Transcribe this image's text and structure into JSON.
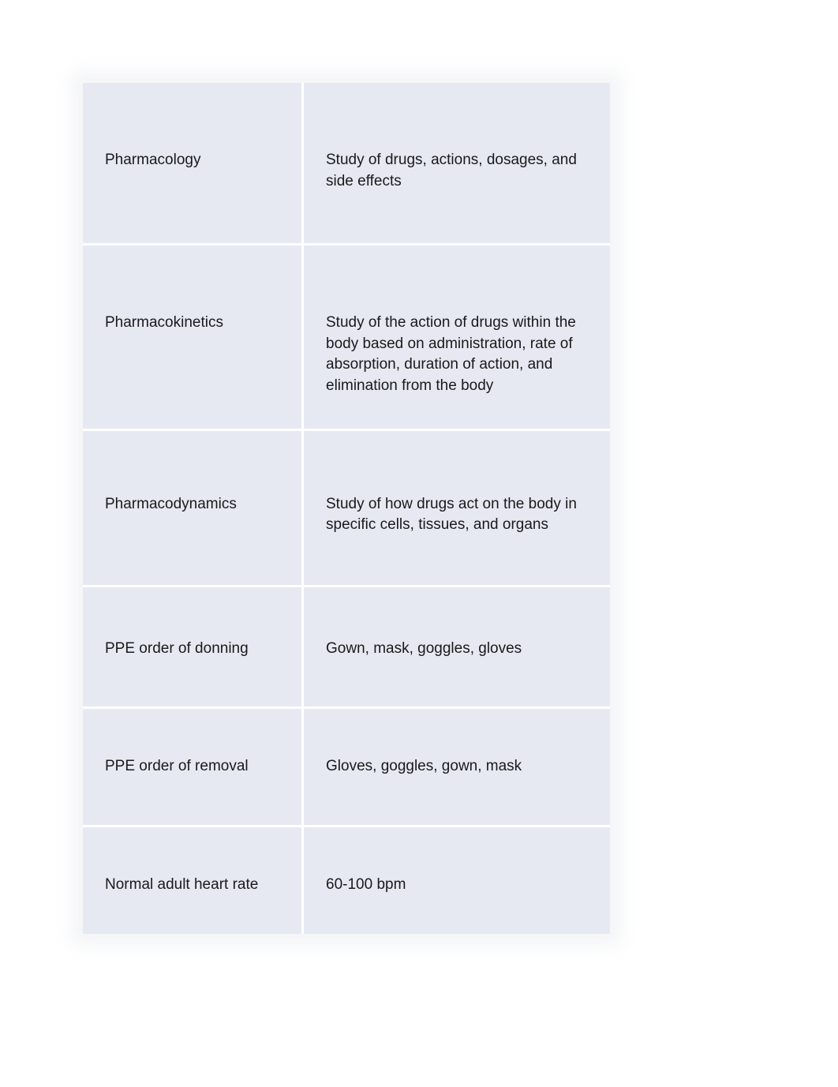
{
  "table": {
    "background_color": "#e6e9f2",
    "text_color": "#1a1a1a",
    "font_size": 19,
    "rows": [
      {
        "term": "Pharmacology",
        "definition": "Study of drugs, actions, dosages, and side effects"
      },
      {
        "term": "Pharmacokinetics",
        "definition": "Study of the action of drugs within the body based on administration, rate of absorption, duration of action, and elimination from the body"
      },
      {
        "term": "Pharmacodynamics",
        "definition": "Study of how drugs act on the body in specific cells, tissues, and organs"
      },
      {
        "term": "PPE order of donning",
        "definition": "Gown, mask, goggles, gloves"
      },
      {
        "term": "PPE order of removal",
        "definition": "Gloves, goggles, gown, mask"
      },
      {
        "term": "Normal adult heart rate",
        "definition": "60-100 bpm"
      }
    ]
  }
}
